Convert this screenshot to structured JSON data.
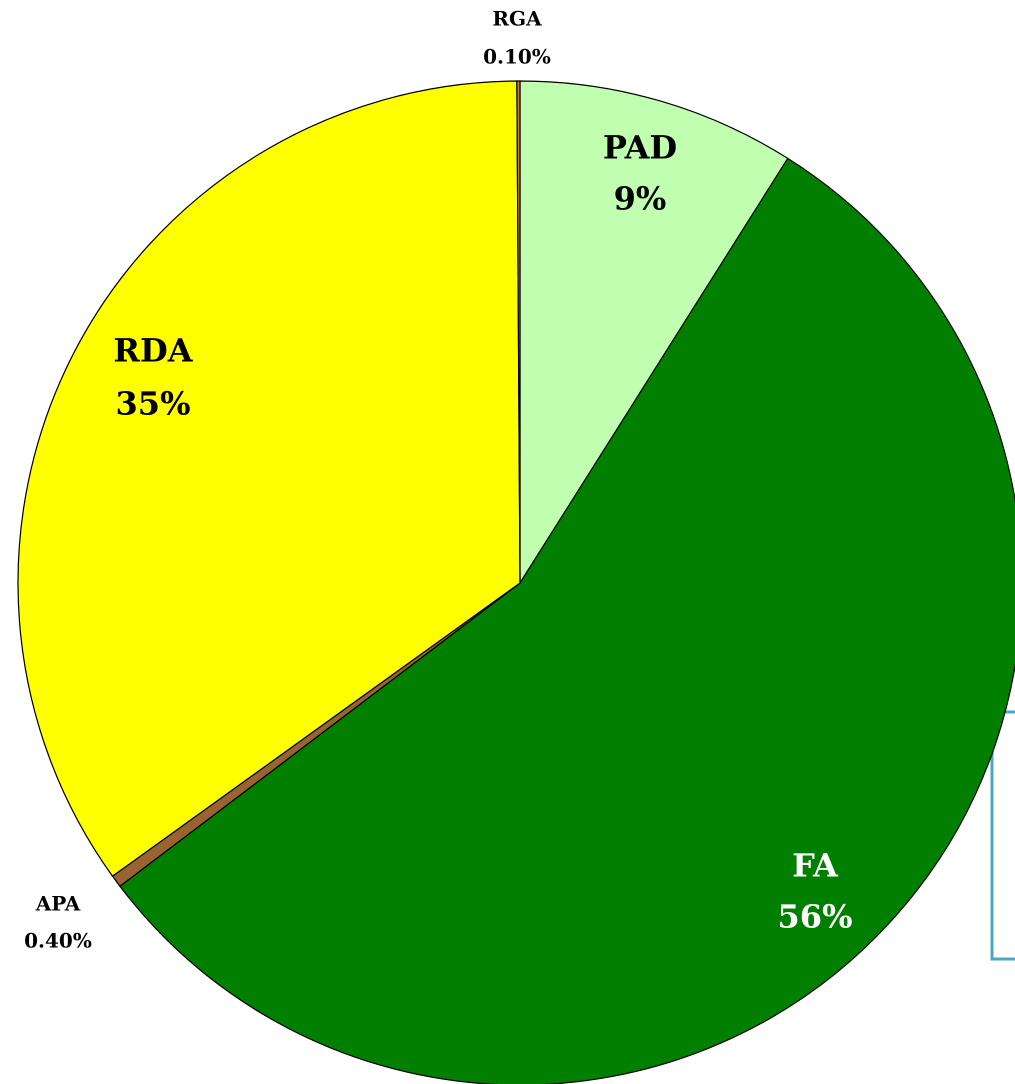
{
  "chart_data": {
    "type": "pie",
    "categories": [
      "PAD",
      "FA",
      "APA",
      "RDA",
      "RGA"
    ],
    "values": [
      9,
      56,
      0.4,
      35,
      0.1
    ],
    "value_labels": [
      "9%",
      "56%",
      "0.40%",
      "35%",
      "0.10%"
    ],
    "colors": [
      "#c0ffb0",
      "#007f00",
      "#9a6432",
      "#ffff00",
      "#c08040"
    ],
    "start_angle": 0,
    "direction": "clockwise"
  }
}
